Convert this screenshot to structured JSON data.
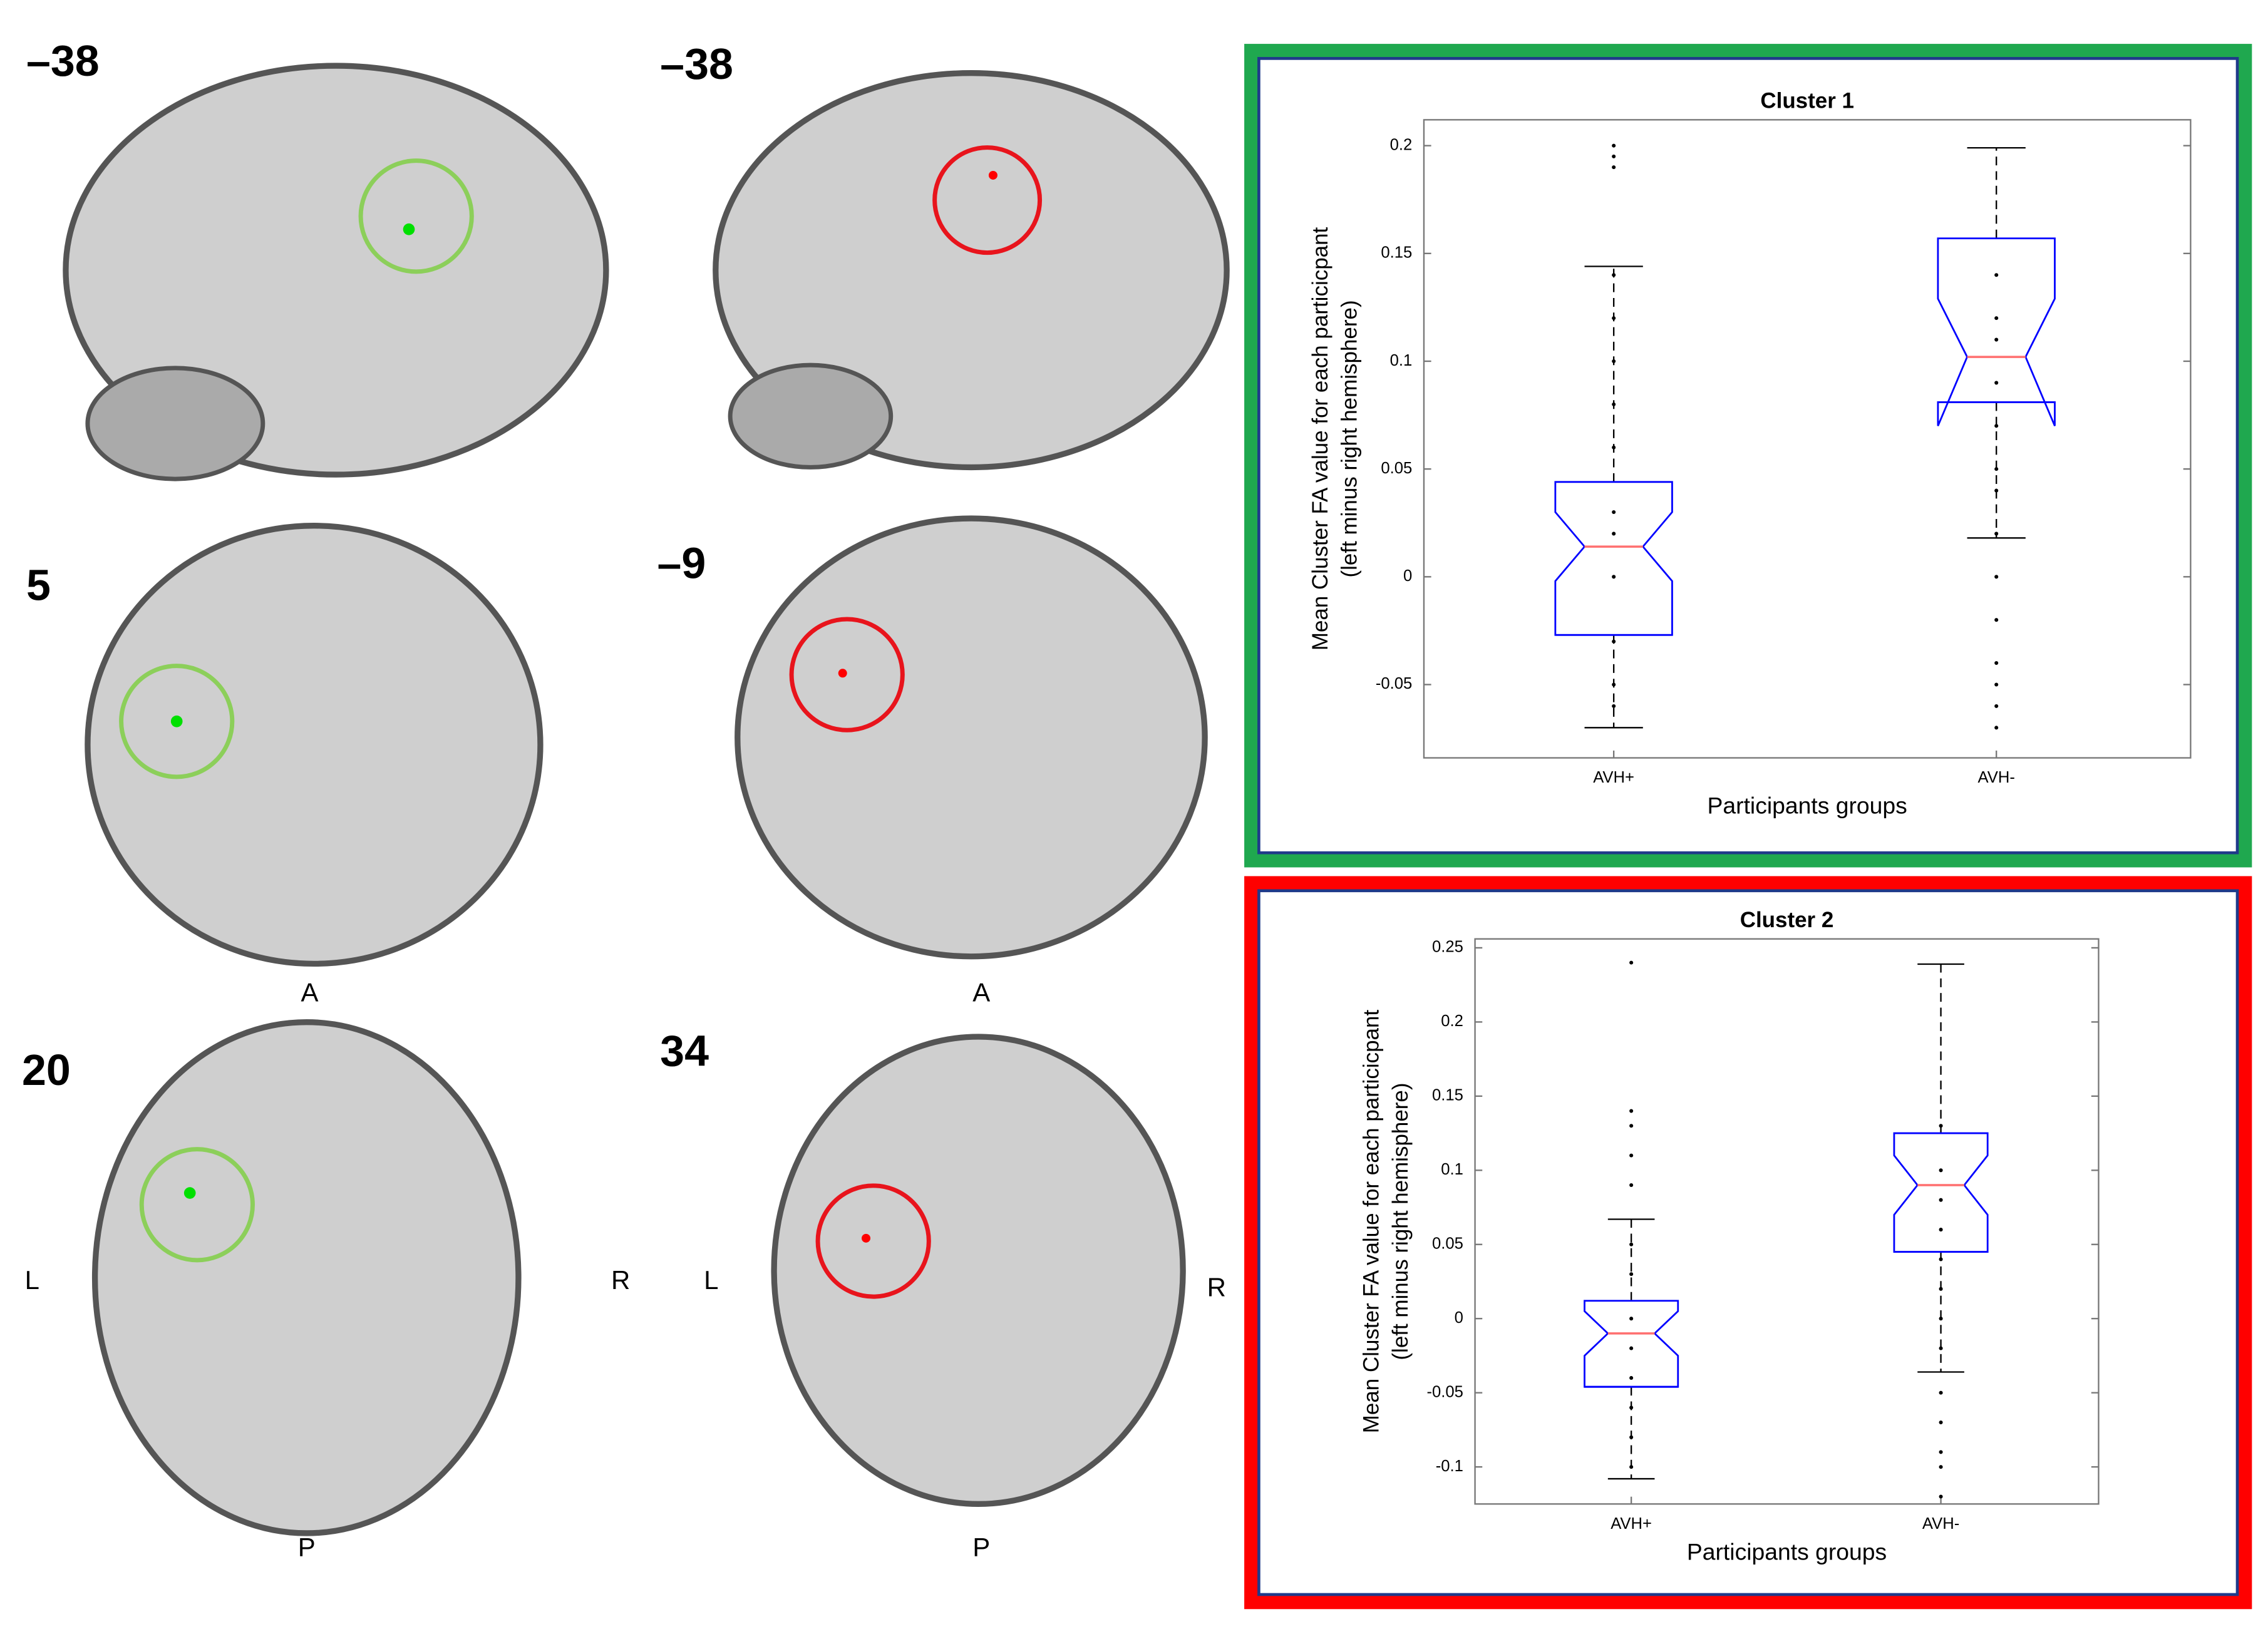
{
  "slices": {
    "numbers": [
      "–38",
      "–38",
      "5",
      "–9",
      "20",
      "34"
    ],
    "orientation": [
      "A",
      "A",
      "L",
      "R",
      "L",
      "R",
      "P",
      "P"
    ]
  },
  "chart_data": [
    {
      "type": "box",
      "title": "Cluster 1",
      "xlabel": "Participants groups",
      "ylabel": [
        "Mean Cluster FA value for each particicpant",
        "(left minus right hemisphere)"
      ],
      "categories": [
        "AVH+",
        "AVH-"
      ],
      "box_color": "#0000ff",
      "median_color": "#ff6f6f",
      "frame_color": "#1fa84f",
      "ylim": [
        -0.084,
        0.212
      ],
      "yticks": [
        -0.05,
        0,
        0.05,
        0.1,
        0.15,
        0.2
      ],
      "boxes": [
        {
          "whislo": -0.07,
          "q1": -0.027,
          "med": 0.014,
          "q3": 0.044,
          "whishi": 0.144,
          "notchlo": -0.002,
          "notchhi": 0.03,
          "points": [
            0.2,
            0.195,
            0.19,
            0.14,
            0.12,
            0.1,
            0.08,
            0.06,
            0.03,
            0.02,
            0.0,
            -0.03,
            -0.05,
            -0.06
          ]
        },
        {
          "whislo": 0.018,
          "q1": 0.081,
          "med": 0.102,
          "q3": 0.157,
          "whishi": 0.199,
          "notchlo": 0.07,
          "notchhi": 0.129,
          "points": [
            0.14,
            0.12,
            0.11,
            0.09,
            0.07,
            0.05,
            0.04,
            0.02,
            0.0,
            -0.02,
            -0.04,
            -0.05,
            -0.06,
            -0.07
          ]
        }
      ]
    },
    {
      "type": "box",
      "title": "Cluster 2",
      "xlabel": "Participants groups",
      "ylabel": [
        "Mean Cluster FA value for each particicpant",
        "(left minus right hemisphere)"
      ],
      "categories": [
        "AVH+",
        "AVH-"
      ],
      "box_color": "#0000ff",
      "median_color": "#ff6f6f",
      "frame_color": "#ff0000",
      "ylim": [
        -0.125,
        0.256
      ],
      "yticks": [
        -0.1,
        -0.05,
        0,
        0.05,
        0.1,
        0.15,
        0.2,
        0.25
      ],
      "boxes": [
        {
          "whislo": -0.108,
          "q1": -0.046,
          "med": -0.01,
          "q3": 0.012,
          "whishi": 0.067,
          "notchlo": -0.025,
          "notchhi": 0.005,
          "points": [
            0.24,
            0.14,
            0.13,
            0.11,
            0.09,
            0.05,
            0.03,
            0.0,
            -0.02,
            -0.04,
            -0.06,
            -0.08,
            -0.1
          ]
        },
        {
          "whislo": -0.036,
          "q1": 0.045,
          "med": 0.09,
          "q3": 0.125,
          "whishi": 0.239,
          "notchlo": 0.07,
          "notchhi": 0.11,
          "points": [
            0.13,
            0.1,
            0.08,
            0.06,
            0.04,
            0.02,
            0.0,
            -0.02,
            -0.05,
            -0.07,
            -0.09,
            -0.1,
            -0.12
          ]
        }
      ]
    }
  ]
}
